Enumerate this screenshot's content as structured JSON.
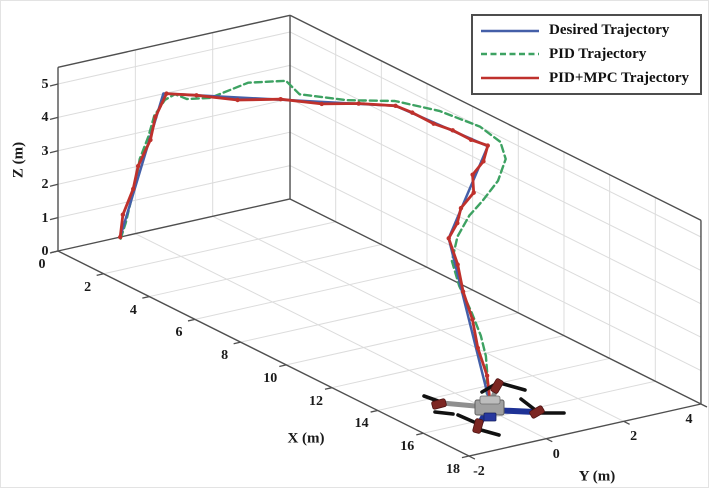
{
  "figure": {
    "background": "#ffffff",
    "box_color": "#4f4f4f",
    "grid_color": "#dcdcdc"
  },
  "legend": {
    "items": [
      {
        "label": "Desired Trajectory",
        "color": "#445fa8",
        "style": "solid"
      },
      {
        "label": "PID Trajectory",
        "color": "#3da262",
        "style": "dashed"
      },
      {
        "label": "PID+MPC Trajectory",
        "color": "#bf312c",
        "style": "solid"
      }
    ]
  },
  "axes": {
    "x": {
      "label": "X (m)",
      "ticks": [
        0,
        2,
        4,
        6,
        8,
        10,
        12,
        14,
        16,
        18
      ],
      "range": [
        0,
        18
      ]
    },
    "y": {
      "label": "Y (m)",
      "ticks": [
        -2,
        0,
        2,
        4
      ],
      "range": [
        -2,
        4
      ]
    },
    "z": {
      "label": "Z (m)",
      "ticks": [
        0,
        1,
        2,
        3,
        4,
        5
      ],
      "range": [
        0,
        5.5
      ]
    }
  },
  "chart_data": {
    "type": "line",
    "projection": "3d",
    "title": "",
    "xlabel": "X (m)",
    "ylabel": "Y (m)",
    "zlabel": "Z (m)",
    "xlim": [
      0,
      18
    ],
    "ylim": [
      -2,
      4
    ],
    "zlim": [
      0,
      5.5
    ],
    "grid": true,
    "legend_position": "top-right",
    "series": [
      {
        "name": "Desired Trajectory",
        "color": "#445fa8",
        "style": "solid",
        "width": 2.5,
        "marker": "none",
        "points": [
          [
            0.1,
            -0.45,
            0.05
          ],
          [
            1.4,
            -0.1,
            4.7
          ],
          [
            5.3,
            3.6,
            4.7
          ],
          [
            9.0,
            3.8,
            4.7
          ],
          [
            10.0,
            2.2,
            2.7
          ],
          [
            16.0,
            -0.25,
            0.3
          ]
        ]
      },
      {
        "name": "PID Trajectory",
        "color": "#3da262",
        "style": "dashed",
        "width": 2.4,
        "marker": "none",
        "points": [
          [
            0.2,
            -0.5,
            0.05
          ],
          [
            0.25,
            -0.4,
            0.5
          ],
          [
            0.4,
            -0.35,
            1.2
          ],
          [
            0.55,
            -0.3,
            1.9
          ],
          [
            0.7,
            -0.3,
            2.55
          ],
          [
            0.9,
            -0.2,
            3.25
          ],
          [
            1.0,
            -0.1,
            3.9
          ],
          [
            1.3,
            0.0,
            4.45
          ],
          [
            1.4,
            0.2,
            4.6
          ],
          [
            1.75,
            0.3,
            4.55
          ],
          [
            2.1,
            0.7,
            4.6
          ],
          [
            2.4,
            1.5,
            4.95
          ],
          [
            2.7,
            2.3,
            4.9
          ],
          [
            3.3,
            2.3,
            4.7
          ],
          [
            4.2,
            3.0,
            4.65
          ],
          [
            5.1,
            3.7,
            4.75
          ],
          [
            6.2,
            4.2,
            4.7
          ],
          [
            7.3,
            4.6,
            4.5
          ],
          [
            8.2,
            4.6,
            4.35
          ],
          [
            8.6,
            4.5,
            4.0
          ],
          [
            8.6,
            4.3,
            3.4
          ],
          [
            8.6,
            3.9,
            2.9
          ],
          [
            8.7,
            3.5,
            2.6
          ],
          [
            9.2,
            2.9,
            2.3
          ],
          [
            9.8,
            2.4,
            1.9
          ],
          [
            10.8,
            2.0,
            1.6
          ],
          [
            12.0,
            1.6,
            1.35
          ],
          [
            13.1,
            1.2,
            1.1
          ],
          [
            14.0,
            0.8,
            0.9
          ],
          [
            14.65,
            0.45,
            0.7
          ],
          [
            15.2,
            0.1,
            0.5
          ],
          [
            15.7,
            -0.15,
            0.35
          ],
          [
            15.9,
            -0.2,
            0.3
          ]
        ]
      },
      {
        "name": "PID+MPC Trajectory",
        "color": "#bf312c",
        "style": "solid",
        "width": 2.8,
        "marker": "circle",
        "marker_size": 2.2,
        "points": [
          [
            0.1,
            -0.45,
            0.05
          ],
          [
            0.3,
            -0.5,
            0.8
          ],
          [
            0.5,
            -0.35,
            1.6
          ],
          [
            0.8,
            -0.4,
            2.4
          ],
          [
            1.0,
            -0.2,
            3.2
          ],
          [
            1.3,
            -0.25,
            4.0
          ],
          [
            1.45,
            -0.05,
            4.7
          ],
          [
            2.0,
            0.4,
            4.72
          ],
          [
            2.7,
            1.05,
            4.65
          ],
          [
            3.4,
            1.75,
            4.73
          ],
          [
            4.1,
            2.4,
            4.66
          ],
          [
            4.7,
            3.0,
            4.72
          ],
          [
            5.3,
            3.6,
            4.7
          ],
          [
            6.0,
            3.62,
            4.73
          ],
          [
            6.8,
            3.7,
            4.65
          ],
          [
            7.6,
            3.72,
            4.72
          ],
          [
            8.3,
            3.78,
            4.66
          ],
          [
            9.0,
            3.8,
            4.72
          ],
          [
            9.15,
            3.6,
            4.35
          ],
          [
            9.1,
            3.35,
            4.0
          ],
          [
            9.4,
            3.2,
            3.6
          ],
          [
            9.35,
            2.9,
            3.2
          ],
          [
            9.7,
            2.6,
            2.95
          ],
          [
            10.0,
            2.2,
            2.7
          ],
          [
            10.9,
            1.9,
            2.3
          ],
          [
            11.9,
            1.45,
            1.95
          ],
          [
            12.9,
            1.1,
            1.55
          ],
          [
            13.9,
            0.65,
            1.15
          ],
          [
            14.9,
            0.3,
            0.75
          ],
          [
            15.9,
            -0.2,
            0.3
          ]
        ]
      }
    ],
    "annotations": [
      {
        "type": "drone-image",
        "position_xyz": [
          15.9,
          -0.2,
          0.3
        ]
      }
    ]
  }
}
